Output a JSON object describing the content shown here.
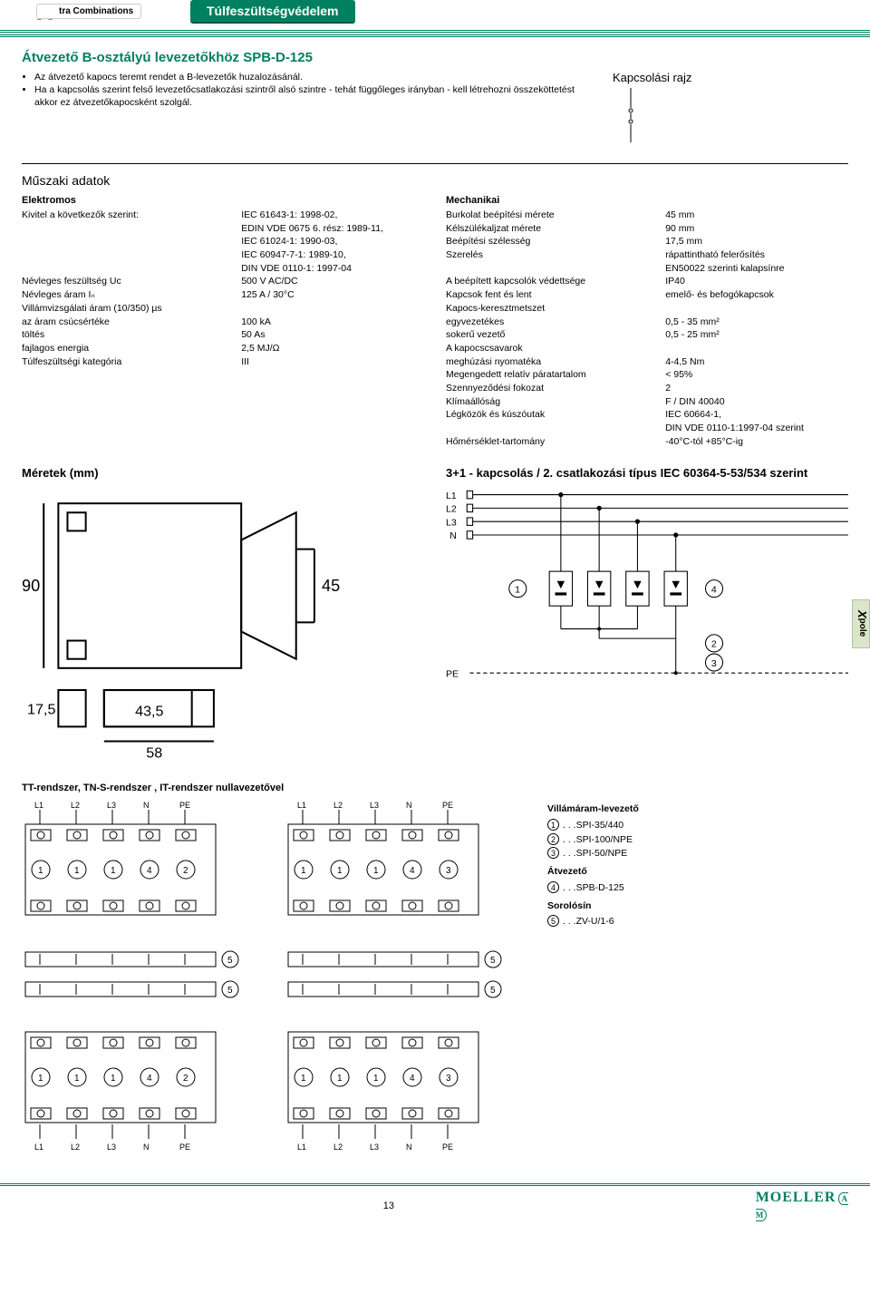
{
  "colors": {
    "brand_green": "#008060",
    "x_green": "#6aa121",
    "side_tab_bg": "#dbe6c8",
    "text": "#000000",
    "bg": "#ffffff",
    "rule_gray": "#cccccc"
  },
  "header": {
    "logo_text": "tra Combinations",
    "pill": "Túlfeszültségvédelem"
  },
  "title": "Átvezető B-osztályú levezetőkhöz SPB-D-125",
  "bullets": [
    "Az átvezető kapocs teremt rendet a B-levezetők huzalozásánál.",
    "Ha a kapcsolás szerint felső levezetőcsatlakozási szintről alsó szintre - tehát függőleges irányban - kell létrehozni összeköttetést akkor ez átvezetőkapocsként szolgál."
  ],
  "kapcsolasi_rajz_label": "Kapcsolási rajz",
  "tech": {
    "heading": "Műszaki adatok",
    "left": {
      "subhead": "Elektromos",
      "rows": [
        {
          "label": "Kivitel a következők szerint:",
          "value": "IEC 61643-1: 1998-02,\nEDIN VDE 0675 6. rész: 1989-11,\nIEC 61024-1: 1990-03,\nIEC 60947-7-1: 1989-10,\nDIN VDE 0110-1: 1997-04"
        },
        {
          "label": "Névleges feszültség Uᴄ",
          "value": "500 V AC/DC"
        },
        {
          "label": "Névleges áram Iₙ",
          "value": "125 A / 30°C"
        },
        {
          "label": "Villámvizsgálati áram (10/350) µs\n   az áram csúcsértéke\n   töltés\n   fajlagos energia",
          "value": "\n100 kA\n50 As\n2,5 MJ/Ω"
        },
        {
          "label": "Túlfeszültségi kategória",
          "value": "III"
        }
      ]
    },
    "right": {
      "subhead": "Mechanikai",
      "rows": [
        {
          "label": "Burkolat beépítési mérete",
          "value": "45 mm"
        },
        {
          "label": "Kélszülékaljzat mérete",
          "value": "90 mm"
        },
        {
          "label": "Beépítési szélesség",
          "value": "17,5 mm"
        },
        {
          "label": "Szerelés",
          "value": "rápattintható felerősítés\nEN50022 szerinti kalapsínre"
        },
        {
          "label": "A beépített kapcsolók védettsége",
          "value": "IP40"
        },
        {
          "label": "Kapcsok fent és lent",
          "value": "emelő- és befogókapcsok"
        },
        {
          "label": "Kapocs-keresztmetszet\n   egyvezetékes\n   sokerű vezető",
          "value": "\n0,5 - 35 mm²\n0,5 - 25 mm²"
        },
        {
          "label": "A kapocscsavarok\n   meghúzási nyomatéka",
          "value": "\n4-4,5 Nm"
        },
        {
          "label": "Megengedett relatív páratartalom",
          "value": "< 95%"
        },
        {
          "label": "Szennyeződési fokozat",
          "value": "2"
        },
        {
          "label": "Klímaállóság",
          "value": "F / DIN 40040"
        },
        {
          "label": "Légközök és kúszóutak",
          "value": "IEC 60664-1,\nDIN VDE 0110-1:1997-04 szerint"
        },
        {
          "label": "Hőmérséklet-tartomány",
          "value": "-40°C-tól +85°C-ig"
        }
      ]
    }
  },
  "side_tab": {
    "x": "X",
    "text": "pole"
  },
  "meretek": {
    "heading": "Méretek (mm)",
    "dims": {
      "h": "90",
      "badge_h": "45",
      "w": "17,5",
      "w_inner": "43,5",
      "w_outer": "58"
    }
  },
  "wiring": {
    "heading": "3+1 - kapcsolás / 2. csatlakozási típus IEC 60364-5-53/534 szerint",
    "labels": {
      "L1": "L1",
      "L2": "L2",
      "L3": "L3",
      "N": "N",
      "PE": "PE"
    },
    "nodes": [
      "1",
      "2",
      "3",
      "4"
    ]
  },
  "systems": {
    "heading": "TT-rendszer, TN-S-rendszer , IT-rendszer nullavezetővel",
    "labels": [
      "L1",
      "L2",
      "L3",
      "N",
      "PE"
    ],
    "variant_a": [
      "1",
      "1",
      "1",
      "4",
      "2"
    ],
    "variant_b": [
      "1",
      "1",
      "1",
      "4",
      "3"
    ],
    "extra": "5"
  },
  "legend": {
    "group1": {
      "title": "Villámáram-levezető",
      "items": [
        {
          "num": "1",
          "text": ". . .SPI-35/440"
        },
        {
          "num": "2",
          "text": ". . .SPI-100/NPE"
        },
        {
          "num": "3",
          "text": ". . .SPI-50/NPE"
        }
      ]
    },
    "group2": {
      "title": "Átvezető",
      "items": [
        {
          "num": "4",
          "text": ". . .SPB-D-125"
        }
      ]
    },
    "group3": {
      "title": "Sorolósín",
      "items": [
        {
          "num": "5",
          "text": ". . .ZV-U/1-6"
        }
      ]
    }
  },
  "footer": {
    "page": "13",
    "brand": "MOELLER"
  }
}
